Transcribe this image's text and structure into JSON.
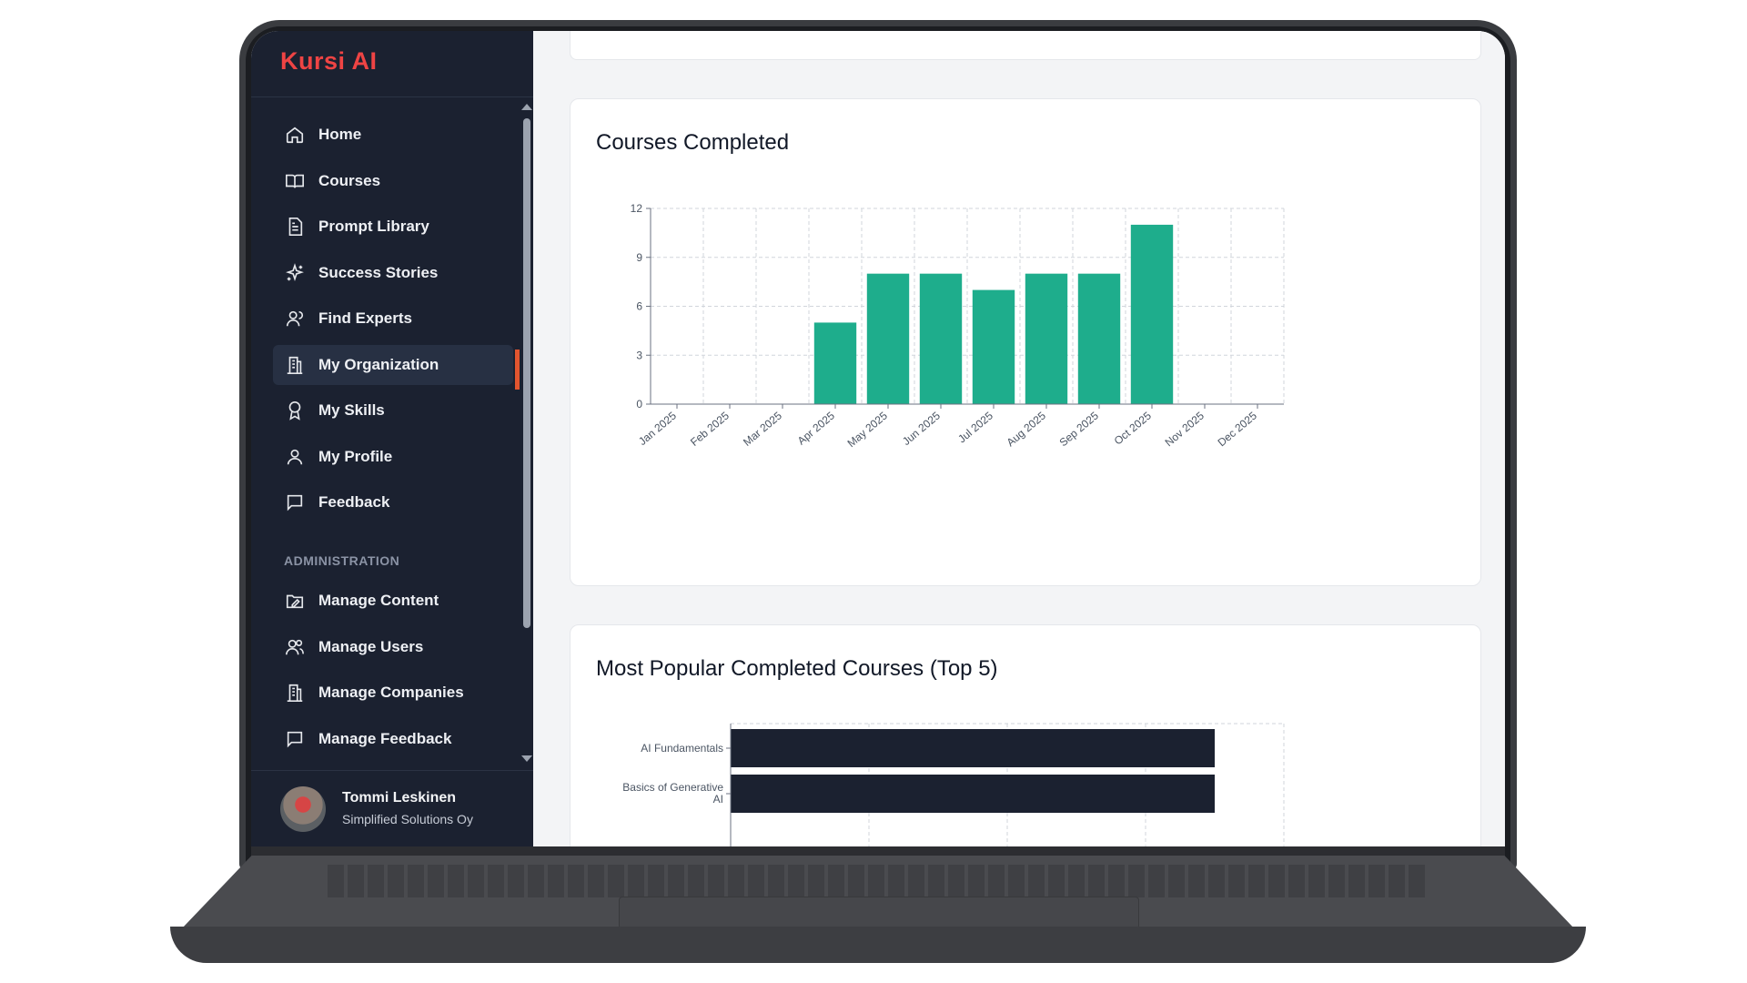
{
  "app": {
    "brand": "Kursi AI"
  },
  "sidebar": {
    "items": [
      {
        "label": "Home",
        "icon": "home-icon"
      },
      {
        "label": "Courses",
        "icon": "book-icon"
      },
      {
        "label": "Prompt Library",
        "icon": "document-icon"
      },
      {
        "label": "Success Stories",
        "icon": "sparkles-icon"
      },
      {
        "label": "Find Experts",
        "icon": "user-search-icon"
      },
      {
        "label": "My Organization",
        "icon": "building-icon",
        "active": true
      },
      {
        "label": "My Skills",
        "icon": "award-icon"
      },
      {
        "label": "My Profile",
        "icon": "user-icon"
      },
      {
        "label": "Feedback",
        "icon": "message-icon"
      }
    ],
    "admin_section_label": "ADMINISTRATION",
    "admin_items": [
      {
        "label": "Manage Content",
        "icon": "folder-edit-icon"
      },
      {
        "label": "Manage Users",
        "icon": "users-icon"
      },
      {
        "label": "Manage Companies",
        "icon": "building-icon"
      },
      {
        "label": "Manage Feedback",
        "icon": "message-icon"
      }
    ],
    "user": {
      "name": "Tommi Leskinen",
      "org": "Simplified Solutions Oy"
    }
  },
  "colors": {
    "bar": "#1ead8c",
    "bar_dark": "#1b2130",
    "active_accent": "#e2552f",
    "brand": "#ef4444"
  },
  "main": {
    "chart1_title": "Courses Completed",
    "chart2_title": "Most Popular Completed Courses (Top 5)"
  },
  "chart_data": [
    {
      "type": "bar",
      "title": "Courses Completed",
      "categories": [
        "Jan 2025",
        "Feb 2025",
        "Mar 2025",
        "Apr 2025",
        "May 2025",
        "Jun 2025",
        "Jul 2025",
        "Aug 2025",
        "Sep 2025",
        "Oct 2025",
        "Nov 2025",
        "Dec 2025"
      ],
      "values": [
        0,
        0,
        0,
        5,
        8,
        8,
        7,
        8,
        8,
        11,
        0,
        0
      ],
      "yticks": [
        0,
        3,
        6,
        9,
        12
      ],
      "ylim": [
        0,
        12
      ],
      "grid": true,
      "color": "#1ead8c"
    },
    {
      "type": "bar",
      "orientation": "horizontal",
      "title": "Most Popular Completed Courses (Top 5)",
      "categories": [
        "AI Fundamentals",
        "Basics of Generative AI"
      ],
      "category_lines": [
        [
          "AI Fundamentals"
        ],
        [
          "Basics of Generative",
          "AI"
        ]
      ],
      "values": [
        7,
        7
      ],
      "xlim": [
        0,
        8
      ],
      "grid": true,
      "color": "#1b2130"
    }
  ]
}
